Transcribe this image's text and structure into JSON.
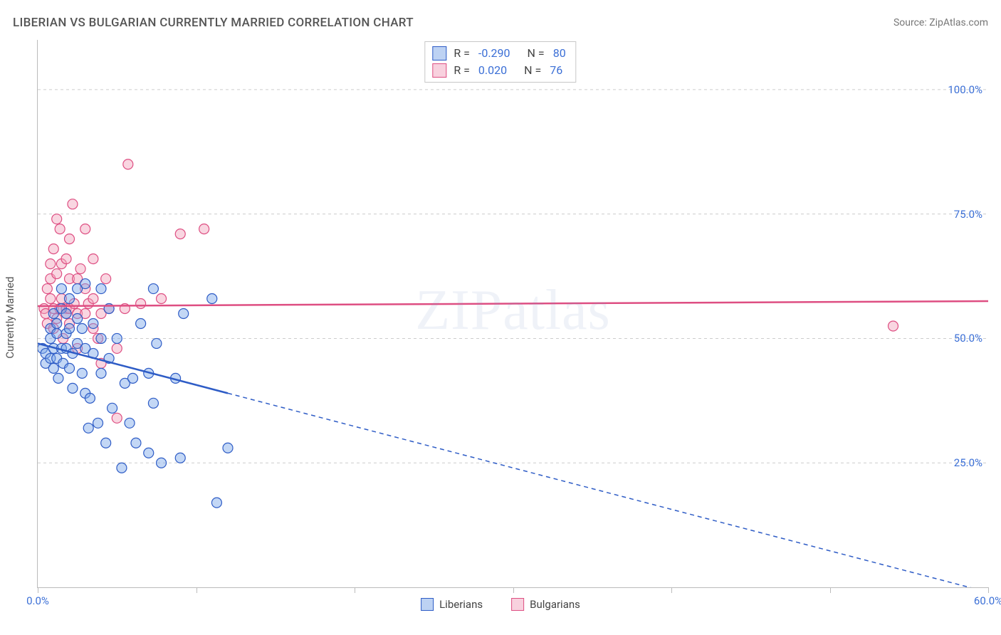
{
  "header": {
    "title": "LIBERIAN VS BULGARIAN CURRENTLY MARRIED CORRELATION CHART",
    "source": "Source: ZipAtlas.com"
  },
  "watermark": "ZIPatlas",
  "axes": {
    "ylabel": "Currently Married",
    "x": {
      "min": 0,
      "max": 60,
      "ticks": [
        0,
        10,
        20,
        30,
        40,
        50,
        60
      ],
      "tick_labels": {
        "0": "0.0%",
        "60": "60.0%"
      }
    },
    "y": {
      "min": 0,
      "max": 110,
      "ticks": [
        25,
        50,
        75,
        100
      ],
      "tick_labels": {
        "25": "25.0%",
        "50": "50.0%",
        "75": "75.0%",
        "100": "100.0%"
      }
    },
    "grid_color": "#cccccc",
    "label_color": "#3b6fd6"
  },
  "series": {
    "liberians": {
      "label": "Liberians",
      "R": "-0.290",
      "N": "80",
      "fill": "#7ba6e8",
      "stroke": "#2e5cc6",
      "marker_radius": 7,
      "reg_line": {
        "y_at_x0": 49,
        "y_at_x60": -1,
        "solid_until_x": 12
      },
      "points": [
        [
          0.3,
          48
        ],
        [
          0.5,
          47
        ],
        [
          0.5,
          45
        ],
        [
          0.8,
          52
        ],
        [
          0.8,
          50
        ],
        [
          0.8,
          46
        ],
        [
          1.0,
          55
        ],
        [
          1.0,
          48
        ],
        [
          1.0,
          44
        ],
        [
          1.2,
          46
        ],
        [
          1.2,
          51
        ],
        [
          1.2,
          53
        ],
        [
          1.3,
          42
        ],
        [
          1.5,
          48
        ],
        [
          1.5,
          56
        ],
        [
          1.5,
          60
        ],
        [
          1.6,
          45
        ],
        [
          1.8,
          48
        ],
        [
          1.8,
          51
        ],
        [
          1.8,
          55
        ],
        [
          2.0,
          52
        ],
        [
          2.0,
          58
        ],
        [
          2.0,
          44
        ],
        [
          2.2,
          40
        ],
        [
          2.2,
          47
        ],
        [
          2.5,
          49
        ],
        [
          2.5,
          54
        ],
        [
          2.5,
          60
        ],
        [
          2.8,
          52
        ],
        [
          2.8,
          43
        ],
        [
          3.0,
          39
        ],
        [
          3.0,
          61
        ],
        [
          3.0,
          48
        ],
        [
          3.2,
          32
        ],
        [
          3.3,
          38
        ],
        [
          3.5,
          47
        ],
        [
          3.5,
          53
        ],
        [
          3.8,
          33
        ],
        [
          4.0,
          60
        ],
        [
          4.0,
          50
        ],
        [
          4.0,
          43
        ],
        [
          4.3,
          29
        ],
        [
          4.5,
          56
        ],
        [
          4.5,
          46
        ],
        [
          4.7,
          36
        ],
        [
          5.0,
          50
        ],
        [
          5.3,
          24
        ],
        [
          5.5,
          41
        ],
        [
          5.8,
          33
        ],
        [
          6.0,
          42
        ],
        [
          6.2,
          29
        ],
        [
          6.5,
          53
        ],
        [
          7.0,
          27
        ],
        [
          7.0,
          43
        ],
        [
          7.3,
          60
        ],
        [
          7.3,
          37
        ],
        [
          7.5,
          49
        ],
        [
          7.8,
          25
        ],
        [
          8.7,
          42
        ],
        [
          9.0,
          26
        ],
        [
          9.2,
          55
        ],
        [
          11.0,
          58
        ],
        [
          11.3,
          17
        ],
        [
          12.0,
          28
        ]
      ]
    },
    "bulgarians": {
      "label": "Bulgarians",
      "R": "0.020",
      "N": "76",
      "fill": "#f2a4bd",
      "stroke": "#de4e82",
      "marker_radius": 7,
      "reg_line": {
        "y_at_x0": 56.5,
        "y_at_x60": 57.5,
        "solid_until_x": 60
      },
      "points": [
        [
          0.4,
          56
        ],
        [
          0.5,
          55
        ],
        [
          0.6,
          60
        ],
        [
          0.6,
          53
        ],
        [
          0.8,
          58
        ],
        [
          0.8,
          65
        ],
        [
          0.8,
          62
        ],
        [
          1.0,
          56
        ],
        [
          1.0,
          52
        ],
        [
          1.0,
          68
        ],
        [
          1.2,
          74
        ],
        [
          1.2,
          54
        ],
        [
          1.2,
          63
        ],
        [
          1.4,
          72
        ],
        [
          1.4,
          56
        ],
        [
          1.5,
          58
        ],
        [
          1.5,
          65
        ],
        [
          1.6,
          50
        ],
        [
          1.8,
          56
        ],
        [
          1.8,
          55
        ],
        [
          1.8,
          66
        ],
        [
          2.0,
          56
        ],
        [
          2.0,
          62
        ],
        [
          2.0,
          70
        ],
        [
          2.0,
          53
        ],
        [
          2.2,
          77
        ],
        [
          2.3,
          57
        ],
        [
          2.5,
          62
        ],
        [
          2.5,
          55
        ],
        [
          2.5,
          48
        ],
        [
          2.7,
          64
        ],
        [
          3.0,
          55
        ],
        [
          3.0,
          72
        ],
        [
          3.0,
          60
        ],
        [
          3.2,
          57
        ],
        [
          3.5,
          52
        ],
        [
          3.5,
          66
        ],
        [
          3.5,
          58
        ],
        [
          3.8,
          50
        ],
        [
          4.0,
          55
        ],
        [
          4.0,
          45
        ],
        [
          4.3,
          62
        ],
        [
          4.5,
          56
        ],
        [
          5.0,
          48
        ],
        [
          5.0,
          34
        ],
        [
          5.5,
          56
        ],
        [
          5.7,
          85
        ],
        [
          6.5,
          57
        ],
        [
          7.8,
          58
        ],
        [
          9.0,
          71
        ],
        [
          10.5,
          72
        ],
        [
          54,
          52.5
        ]
      ]
    }
  },
  "legend_bottom": {
    "items": [
      {
        "key": "liberians",
        "label": "Liberians"
      },
      {
        "key": "bulgarians",
        "label": "Bulgarians"
      }
    ]
  }
}
